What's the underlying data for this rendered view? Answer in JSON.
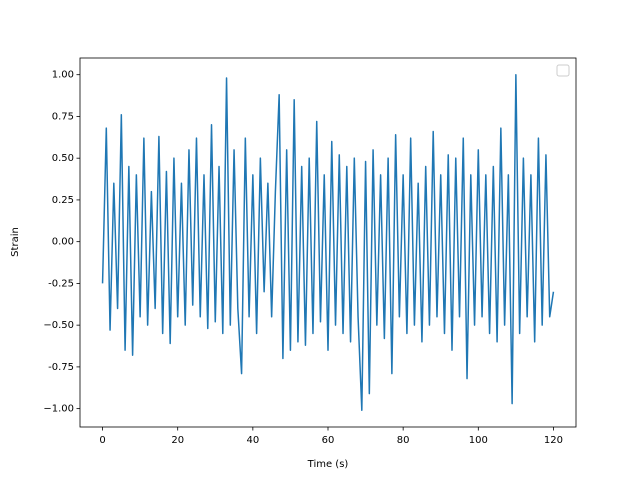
{
  "chart_data": {
    "type": "line",
    "xlabel": "Time (s)",
    "ylabel": "Strain",
    "color": "#1f77b4",
    "xlim": [
      -6,
      126
    ],
    "ylim": [
      -1.11,
      1.1
    ],
    "xticks": [
      0,
      20,
      40,
      60,
      80,
      100,
      120
    ],
    "yticks": [
      {
        "value": -1.0,
        "label": "−1.00"
      },
      -0.75,
      {
        "value": -0.5,
        "label": "−0.50"
      },
      -0.25,
      {
        "value": 0,
        "label": "0.00"
      },
      0.25,
      {
        "value": 0.5,
        "label": "0.50"
      },
      0.75,
      {
        "value": 1.0,
        "label": "1.00"
      }
    ],
    "x": [
      0,
      1,
      2,
      3,
      4,
      5,
      6,
      7,
      8,
      9,
      10,
      11,
      12,
      13,
      14,
      15,
      16,
      17,
      18,
      19,
      20,
      21,
      22,
      23,
      24,
      25,
      26,
      27,
      28,
      29,
      30,
      31,
      32,
      33,
      34,
      35,
      36,
      37,
      38,
      39,
      40,
      41,
      42,
      43,
      44,
      45,
      46,
      47,
      48,
      49,
      50,
      51,
      52,
      53,
      54,
      55,
      56,
      57,
      58,
      59,
      60,
      61,
      62,
      63,
      64,
      65,
      66,
      67,
      68,
      69,
      70,
      71,
      72,
      73,
      74,
      75,
      76,
      77,
      78,
      79,
      80,
      81,
      82,
      83,
      84,
      85,
      86,
      87,
      88,
      89,
      90,
      91,
      92,
      93,
      94,
      95,
      96,
      97,
      98,
      99,
      100,
      101,
      102,
      103,
      104,
      105,
      106,
      107,
      108,
      109,
      110,
      111,
      112,
      113,
      114,
      115,
      116,
      117,
      118,
      119,
      120
    ],
    "values": [
      -0.25,
      0.68,
      -0.53,
      0.35,
      -0.4,
      0.76,
      -0.65,
      0.45,
      -0.68,
      0.4,
      -0.45,
      0.62,
      -0.5,
      0.3,
      -0.4,
      0.63,
      -0.55,
      0.42,
      -0.61,
      0.5,
      -0.45,
      0.35,
      -0.5,
      0.55,
      -0.38,
      0.62,
      -0.45,
      0.4,
      -0.52,
      0.7,
      -0.48,
      0.45,
      -0.55,
      0.98,
      -0.5,
      0.55,
      -0.4,
      -0.79,
      0.62,
      -0.45,
      0.4,
      -0.55,
      0.5,
      -0.3,
      0.35,
      -0.45,
      0.3,
      0.88,
      -0.7,
      0.55,
      -0.65,
      0.85,
      -0.6,
      0.45,
      -0.62,
      0.5,
      -0.55,
      0.72,
      -0.48,
      0.4,
      -0.65,
      0.6,
      -0.5,
      0.52,
      -0.55,
      0.45,
      -0.6,
      0.5,
      -0.45,
      -1.01,
      0.48,
      -0.91,
      0.55,
      -0.5,
      0.4,
      -0.58,
      0.5,
      -0.79,
      0.64,
      -0.45,
      0.4,
      -0.55,
      0.62,
      -0.5,
      0.35,
      -0.6,
      0.45,
      -0.5,
      0.66,
      -0.45,
      0.4,
      -0.55,
      0.52,
      -0.65,
      0.5,
      -0.45,
      0.62,
      -0.82,
      0.4,
      -0.5,
      0.55,
      -0.45,
      0.4,
      -0.55,
      0.45,
      -0.6,
      0.68,
      -0.5,
      0.4,
      -0.97,
      1.0,
      -0.55,
      0.5,
      -0.45,
      0.4,
      -0.6,
      0.62,
      -0.5,
      0.52,
      -0.45,
      -0.3
    ]
  }
}
